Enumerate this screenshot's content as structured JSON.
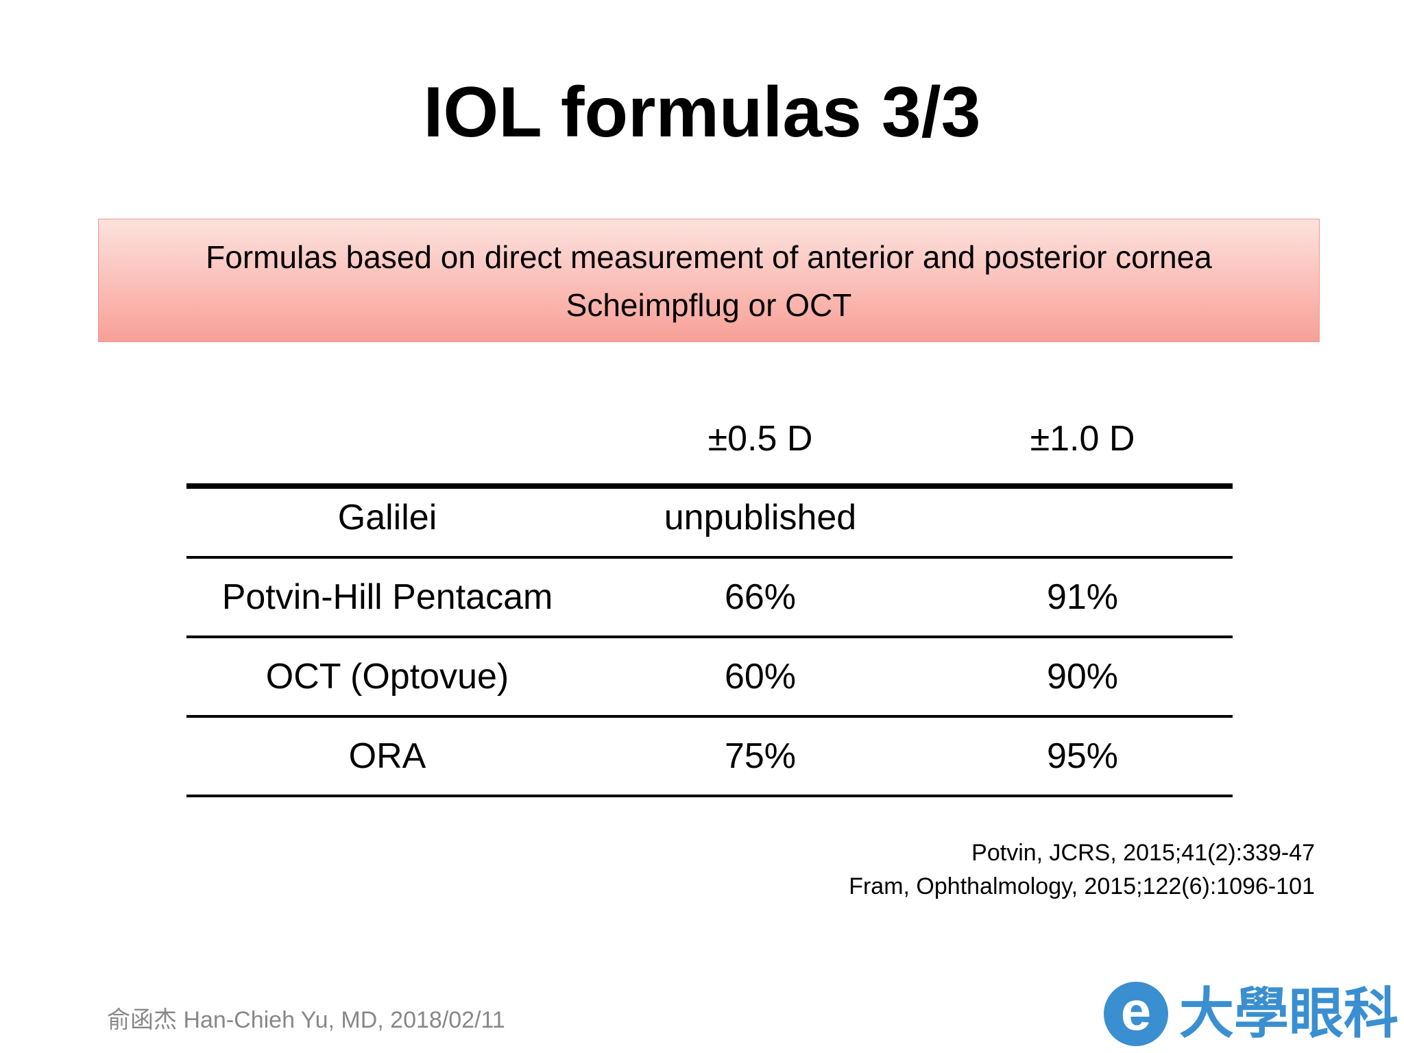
{
  "title": "IOL formulas 3/3",
  "banner": {
    "lines": [
      "Formulas based on direct measurement of anterior and posterior cornea",
      "Scheimpflug or OCT"
    ]
  },
  "table": {
    "columns": [
      "±0.5 D",
      "±1.0 D"
    ],
    "rows": [
      {
        "label": "Galilei",
        "values": [
          "unpublished"
        ]
      },
      {
        "label": "Potvin-Hill Pentacam",
        "values": [
          "66%",
          "91%"
        ]
      },
      {
        "label": "OCT (Optovue)",
        "values": [
          "60%",
          "90%"
        ]
      },
      {
        "label": "ORA",
        "values": [
          "75%",
          "95%"
        ]
      }
    ]
  },
  "references": [
    "Potvin, JCRS, 2015;41(2):339-47",
    "Fram, Ophthalmology, 2015;122(6):1096-101"
  ],
  "footer": "俞函杰 Han-Chieh Yu, MD, 2018/02/11",
  "logo": {
    "letter": "e",
    "text": "大學眼科"
  }
}
